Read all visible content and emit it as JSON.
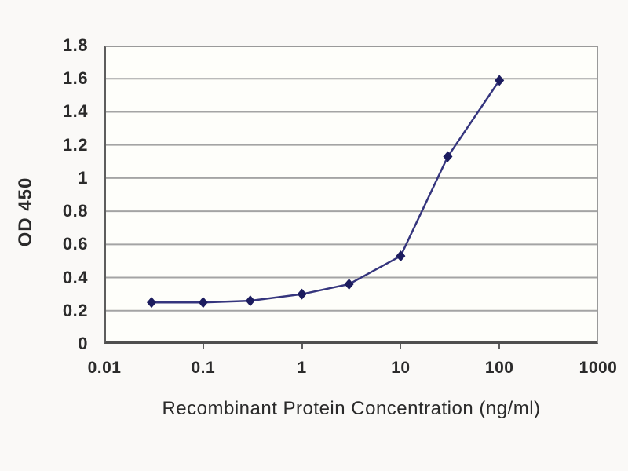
{
  "chart_data": {
    "type": "line",
    "title": "",
    "xlabel": "Recombinant Protein Concentration (ng/ml)",
    "ylabel": "OD 450",
    "x_scale": "log",
    "xlim": [
      0.01,
      1000
    ],
    "ylim": [
      0,
      1.8
    ],
    "grid": "horizontal",
    "legend": "none",
    "x_ticks": [
      {
        "value": 0.01,
        "label": "0.01"
      },
      {
        "value": 0.1,
        "label": "0.1"
      },
      {
        "value": 1,
        "label": "1"
      },
      {
        "value": 10,
        "label": "10"
      },
      {
        "value": 100,
        "label": "100"
      },
      {
        "value": 1000,
        "label": "1000"
      }
    ],
    "y_ticks": [
      {
        "value": 0,
        "label": "0"
      },
      {
        "value": 0.2,
        "label": "0.2"
      },
      {
        "value": 0.4,
        "label": "0.4"
      },
      {
        "value": 0.6,
        "label": "0.6"
      },
      {
        "value": 0.8,
        "label": "0.8"
      },
      {
        "value": 1,
        "label": "1"
      },
      {
        "value": 1.2,
        "label": "1.2"
      },
      {
        "value": 1.4,
        "label": "1.4"
      },
      {
        "value": 1.6,
        "label": "1.6"
      },
      {
        "value": 1.8,
        "label": "1.8"
      }
    ],
    "series": [
      {
        "name": "OD 450",
        "marker": "diamond",
        "x": [
          0.03,
          0.1,
          0.3,
          1,
          3,
          10,
          30,
          100
        ],
        "y": [
          0.25,
          0.25,
          0.26,
          0.3,
          0.36,
          0.53,
          1.13,
          1.59
        ]
      }
    ],
    "colors": {
      "line": "#35357d",
      "marker": "#1c1c5e",
      "grid": "#a4a4a4",
      "axis": "#5d5d5d",
      "text": "#2b2b2b",
      "plot_bg": "#fefefa",
      "page_bg": "#faf9f7"
    }
  }
}
